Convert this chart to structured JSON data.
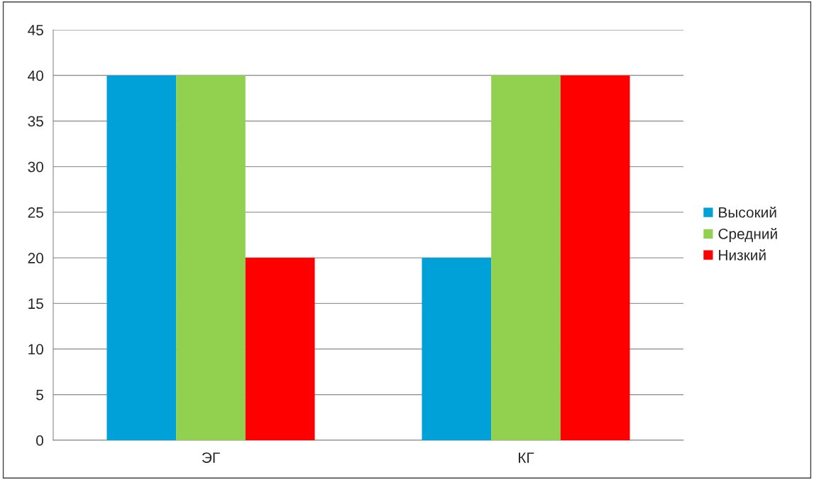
{
  "chart_data": {
    "type": "bar",
    "categories": [
      "ЭГ",
      "КГ"
    ],
    "series": [
      {
        "name": "Высокий",
        "color": "#00a0d8",
        "values": [
          40,
          20
        ]
      },
      {
        "name": "Средний",
        "color": "#92d050",
        "values": [
          40,
          40
        ]
      },
      {
        "name": "Низкий",
        "color": "#ff0000",
        "values": [
          20,
          40
        ]
      }
    ],
    "ylim": [
      0,
      45
    ],
    "yticks": [
      0,
      5,
      10,
      15,
      20,
      25,
      30,
      35,
      40,
      45
    ],
    "grid": "y",
    "legend": "right"
  }
}
